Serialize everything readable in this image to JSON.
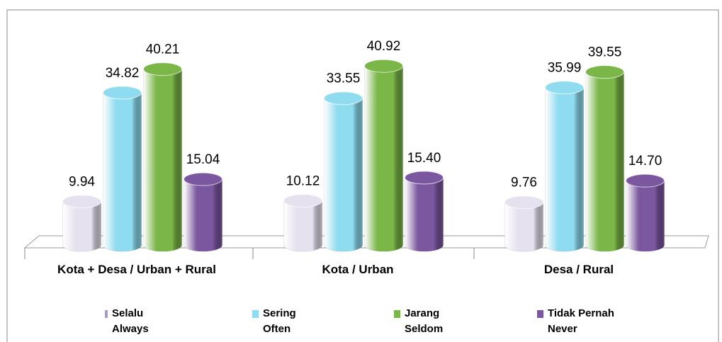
{
  "chart_data": {
    "type": "bar3d",
    "categories": [
      "Kota + Desa / Urban + Rural",
      "Kota / Urban",
      "Desa / Rural"
    ],
    "series": [
      {
        "name": "Selalu\nAlways",
        "color": "#e6e1ef",
        "values": [
          9.94,
          10.12,
          9.76
        ],
        "value_labels": [
          "9.94",
          "10.12",
          "9.76"
        ]
      },
      {
        "name": "Sering\nOften",
        "color": "#8fdcf0",
        "values": [
          34.82,
          33.55,
          35.99
        ],
        "value_labels": [
          "34.82",
          "33.55",
          "35.99"
        ]
      },
      {
        "name": "Jarang\nSeldom",
        "color": "#7ab648",
        "values": [
          40.21,
          40.92,
          39.55
        ],
        "value_labels": [
          "40.21",
          "40.92",
          "39.55"
        ]
      },
      {
        "name": "Tidak Pernah\nNever",
        "color": "#7b57a0",
        "values": [
          15.04,
          15.4,
          14.7
        ],
        "value_labels": [
          "15.04",
          "15.40",
          "14.70"
        ]
      }
    ],
    "ylim": [
      0,
      45
    ]
  }
}
